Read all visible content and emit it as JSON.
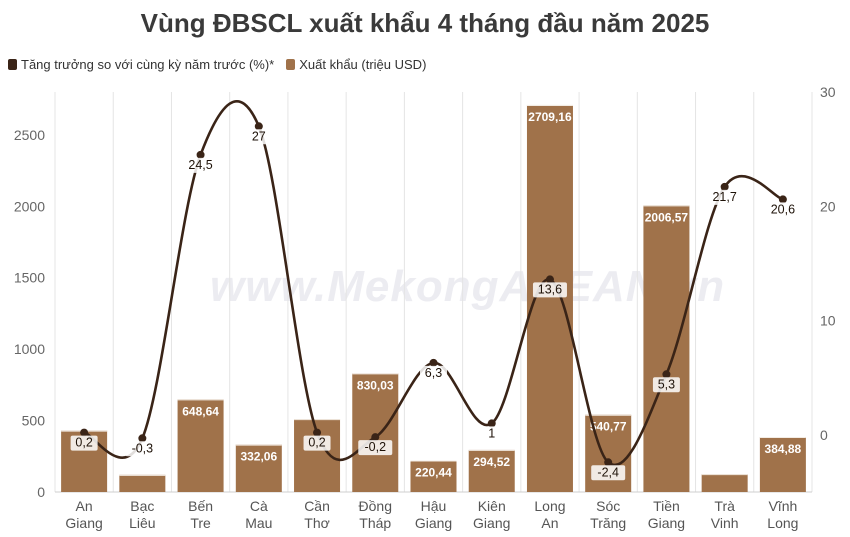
{
  "chart_data": {
    "type": "bar",
    "title": "Vùng ĐBSCL xuất khẩu 4 tháng đầu năm 2025",
    "categories": [
      [
        "An",
        "Giang"
      ],
      [
        "Bạc",
        "Liêu"
      ],
      [
        "Bến",
        "Tre"
      ],
      [
        "Cà",
        "Mau"
      ],
      [
        "Cần",
        "Thơ"
      ],
      [
        "Đồng",
        "Tháp"
      ],
      [
        "Hậu",
        "Giang"
      ],
      [
        "Kiên",
        "Giang"
      ],
      [
        "Long",
        "An"
      ],
      [
        "Sóc",
        "Trăng"
      ],
      [
        "Tiền",
        "Giang"
      ],
      [
        "Trà",
        "Vinh"
      ],
      [
        "Vĩnh",
        "Long"
      ]
    ],
    "series": [
      {
        "name": "Xuất khẩu (triệu USD)",
        "kind": "bar",
        "axis": "left",
        "color": "#a0724a",
        "values": [
          430,
          120,
          648.64,
          332.06,
          510,
          830.03,
          220.44,
          294.52,
          2709.16,
          540.77,
          2006.57,
          125,
          384.88
        ],
        "labels": [
          "",
          "",
          "648,64",
          "332,06",
          "",
          "830,03",
          "220,44",
          "294,52",
          "2709,16",
          "540,77",
          "2006,57",
          "",
          "384,88"
        ]
      },
      {
        "name": "Tăng trưởng so với cùng kỳ năm trước (%)*",
        "kind": "line",
        "axis": "right",
        "color": "#3a2417",
        "values": [
          0.2,
          -0.3,
          24.5,
          27,
          0.2,
          -0.2,
          6.3,
          1,
          13.6,
          -2.4,
          5.3,
          21.7,
          20.6
        ],
        "labels": [
          "0,2",
          "-0,3",
          "24,5",
          "27",
          "0,2",
          "-0,2",
          "6,3",
          "1",
          "13,6",
          "-2,4",
          "5,3",
          "21,7",
          "20,6"
        ]
      }
    ],
    "y_left": {
      "min": 0,
      "max": 2800,
      "ticks": [
        0,
        500,
        1000,
        1500,
        2000,
        2500
      ]
    },
    "y_right": {
      "min": -5,
      "max": 30,
      "ticks": [
        0,
        10,
        20,
        30
      ]
    },
    "legend_position": "top-left",
    "grid": "vertical",
    "watermark": "www.MekongASEAN.vn"
  }
}
